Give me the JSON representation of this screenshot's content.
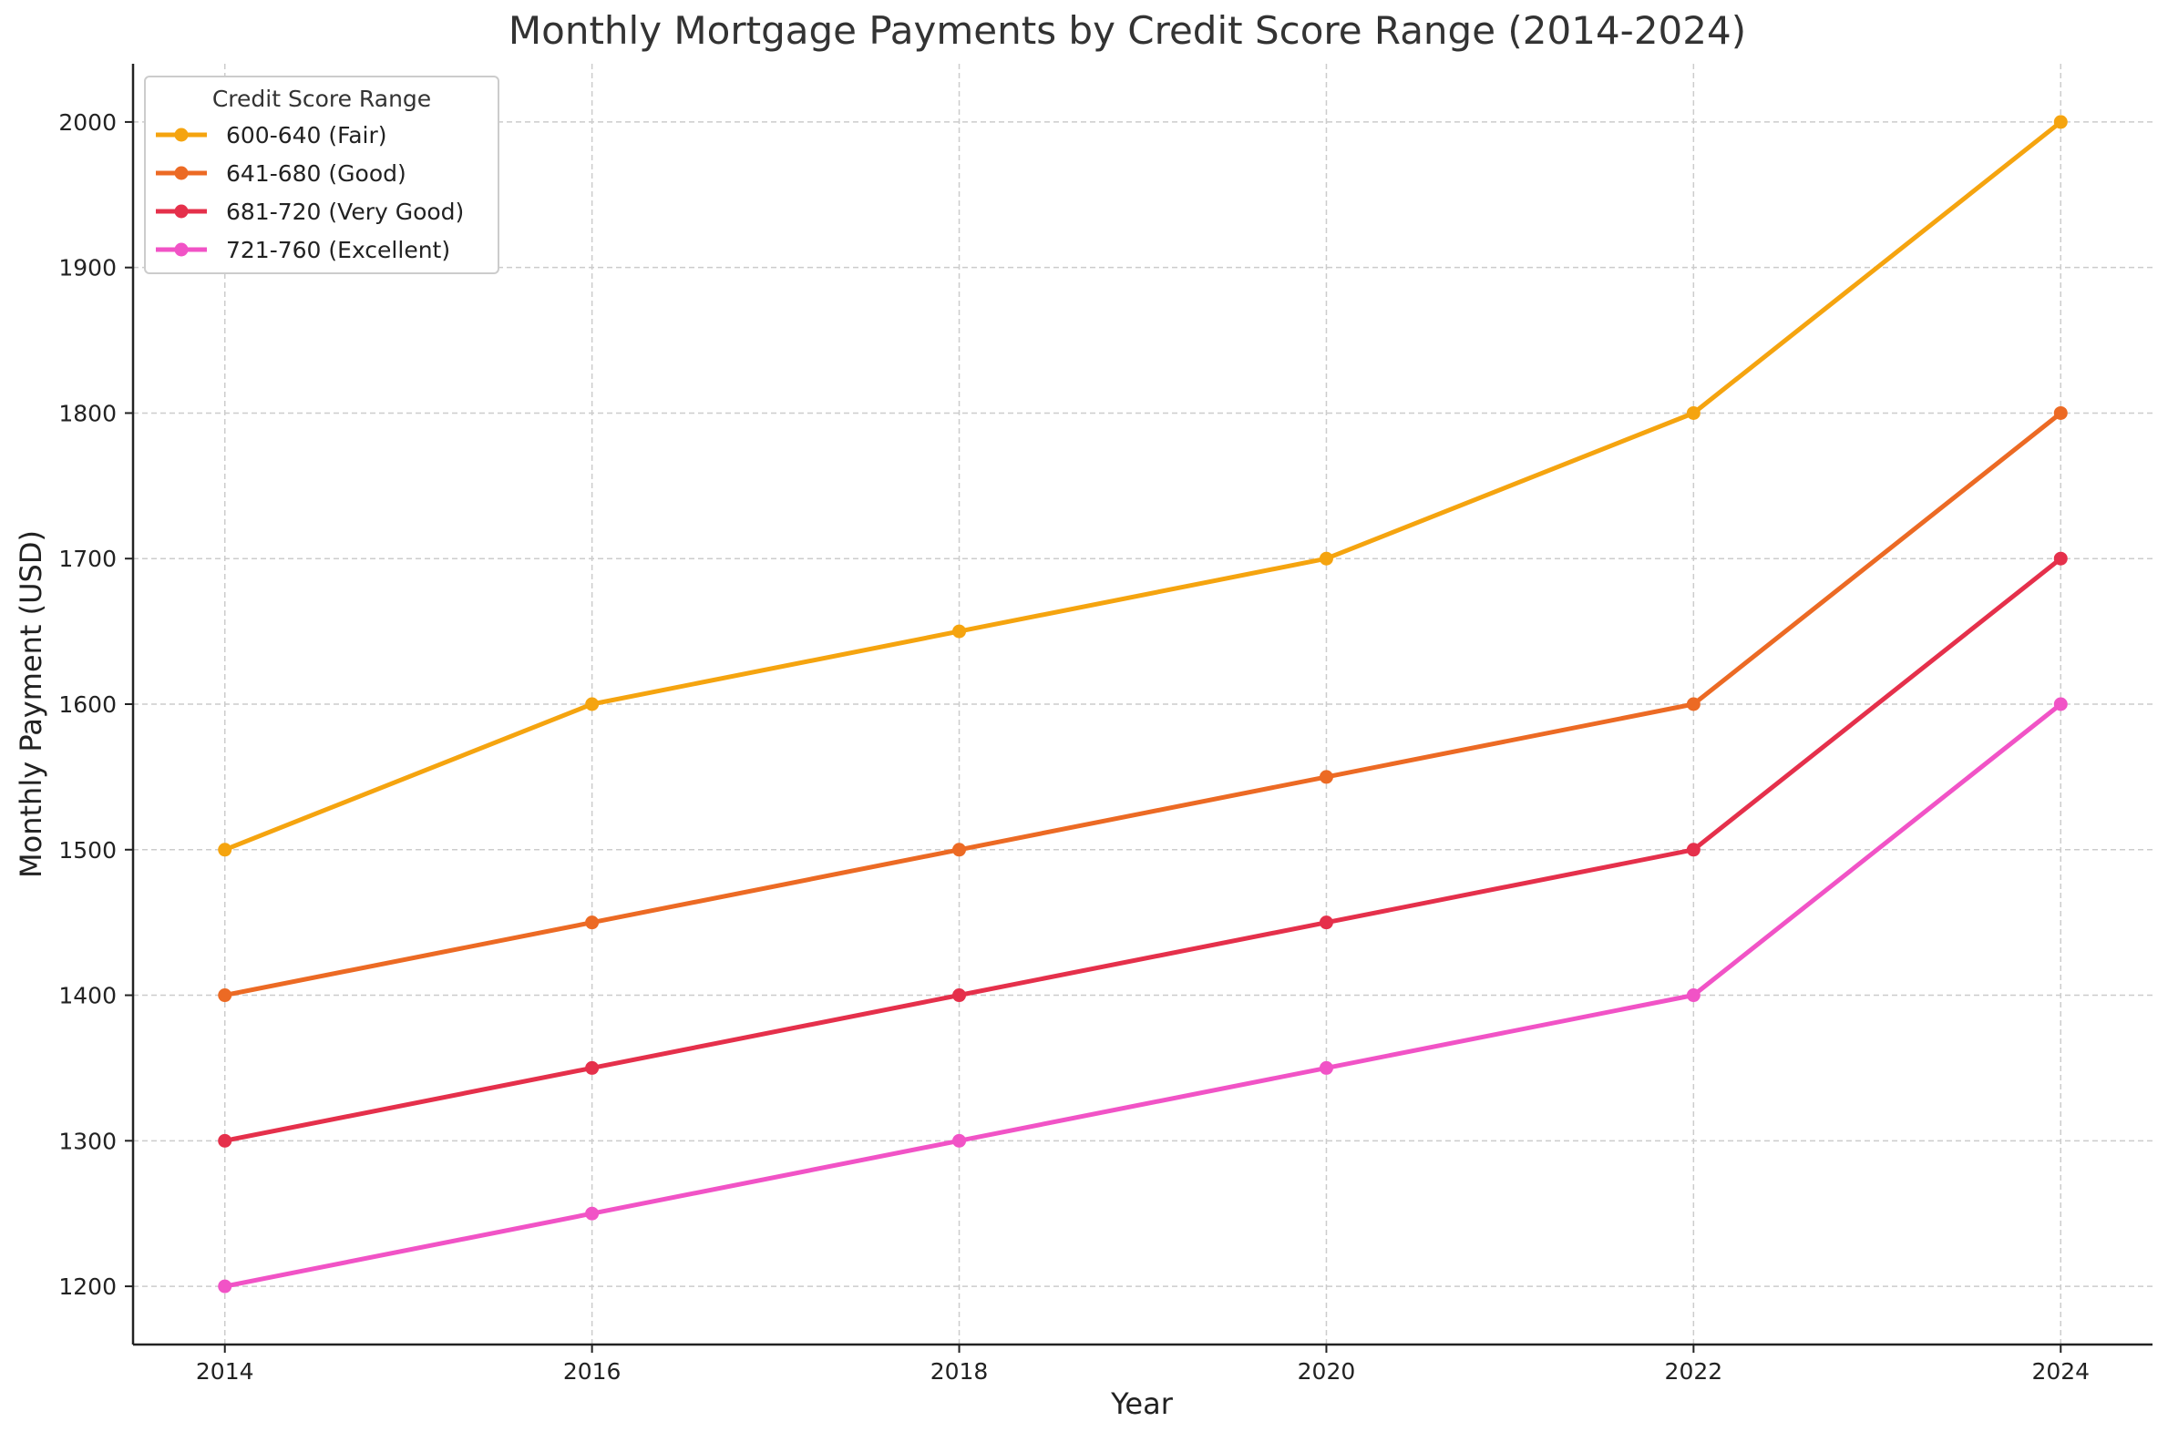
{
  "chart_data": {
    "type": "line",
    "title": "Monthly Mortgage Payments by Credit Score Range (2014-2024)",
    "xlabel": "Year",
    "ylabel": "Monthly Payment (USD)",
    "x": [
      2014,
      2016,
      2018,
      2020,
      2022,
      2024
    ],
    "x_tick_labels": [
      "2014",
      "2016",
      "2018",
      "2020",
      "2022",
      "2024"
    ],
    "y_ticks": [
      1200,
      1300,
      1400,
      1500,
      1600,
      1700,
      1800,
      1900,
      2000
    ],
    "xlim": [
      2013.5,
      2024.5
    ],
    "ylim": [
      1160,
      2040
    ],
    "grid": true,
    "legend": {
      "title": "Credit Score Range",
      "placement": "top-left"
    },
    "series": [
      {
        "name": "600-640 (Fair)",
        "color": "#f5a40f",
        "values": [
          1500,
          1600,
          1650,
          1700,
          1800,
          2000
        ]
      },
      {
        "name": "641-680 (Good)",
        "color": "#ec6a24",
        "values": [
          1400,
          1450,
          1500,
          1550,
          1600,
          1800
        ]
      },
      {
        "name": "681-720 (Very Good)",
        "color": "#e5304b",
        "values": [
          1300,
          1350,
          1400,
          1450,
          1500,
          1700
        ]
      },
      {
        "name": "721-760 (Excellent)",
        "color": "#f153c6",
        "values": [
          1200,
          1250,
          1300,
          1350,
          1400,
          1600
        ]
      }
    ]
  }
}
